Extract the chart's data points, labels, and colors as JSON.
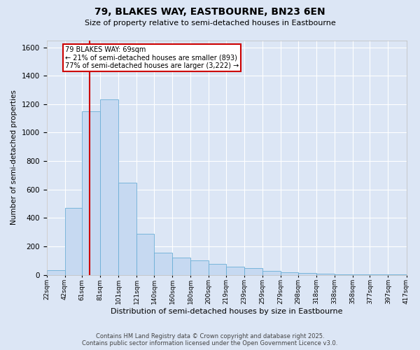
{
  "title1": "79, BLAKES WAY, EASTBOURNE, BN23 6EN",
  "title2": "Size of property relative to semi-detached houses in Eastbourne",
  "xlabel": "Distribution of semi-detached houses by size in Eastbourne",
  "ylabel": "Number of semi-detached properties",
  "footer1": "Contains HM Land Registry data © Crown copyright and database right 2025.",
  "footer2": "Contains public sector information licensed under the Open Government Licence v3.0.",
  "annotation_title": "79 BLAKES WAY: 69sqm",
  "annotation_line1": "← 21% of semi-detached houses are smaller (893)",
  "annotation_line2": "77% of semi-detached houses are larger (3,222) →",
  "property_size": 69,
  "bar_color": "#c6d9f1",
  "bar_edge_color": "#6baed6",
  "vline_color": "#cc0000",
  "annotation_box_color": "#cc0000",
  "background_color": "#dce6f5",
  "bins": [
    22,
    42,
    61,
    81,
    101,
    121,
    140,
    160,
    180,
    200,
    219,
    239,
    259,
    279,
    298,
    318,
    338,
    358,
    377,
    397,
    417
  ],
  "bin_labels": [
    "22sqm",
    "42sqm",
    "61sqm",
    "81sqm",
    "101sqm",
    "121sqm",
    "140sqm",
    "160sqm",
    "180sqm",
    "200sqm",
    "219sqm",
    "239sqm",
    "259sqm",
    "279sqm",
    "298sqm",
    "318sqm",
    "338sqm",
    "358sqm",
    "377sqm",
    "397sqm",
    "417sqm"
  ],
  "counts": [
    30,
    468,
    1148,
    1232,
    648,
    290,
    155,
    120,
    100,
    75,
    55,
    45,
    25,
    15,
    10,
    5,
    3,
    2,
    1,
    1
  ],
  "ylim": [
    0,
    1650
  ],
  "yticks": [
    0,
    200,
    400,
    600,
    800,
    1000,
    1200,
    1400,
    1600
  ]
}
